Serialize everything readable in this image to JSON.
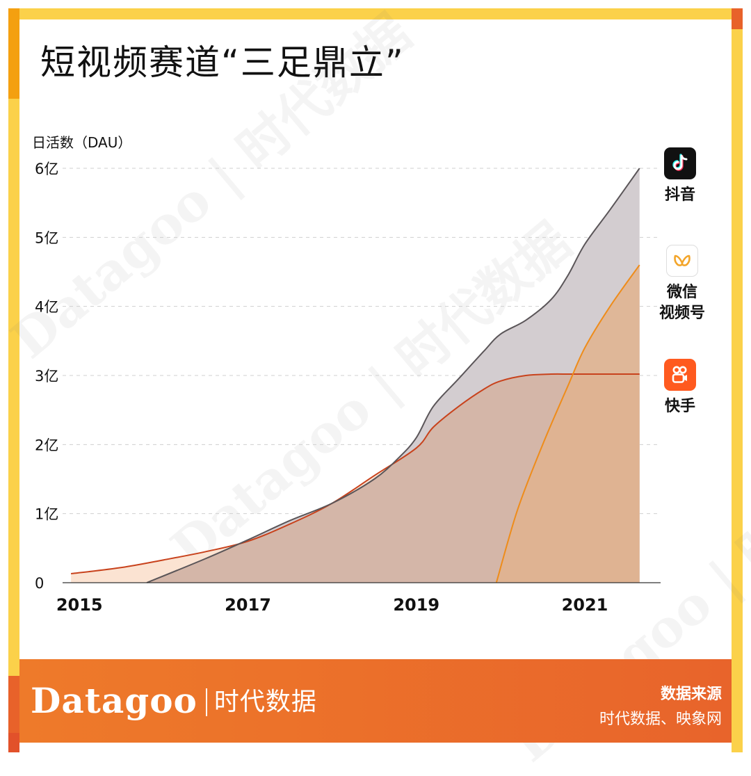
{
  "title": "短视频赛道“三足鼎立”",
  "watermark": "Datagoo | 时代数据",
  "footer": {
    "brand": "Datagoo",
    "brand_cn": "时代数据",
    "source_label": "数据来源",
    "source_value": "时代数据、映象网"
  },
  "legend": [
    {
      "name": "抖音",
      "icon": "douyin-icon"
    },
    {
      "name": "微信\n视频号",
      "icon": "wechat-channels-icon"
    },
    {
      "name": "快手",
      "icon": "kuaishou-icon"
    }
  ],
  "colors": {
    "douyin_fill": "#d3cdd0",
    "douyin_line": "#5a5558",
    "kuaishou_fill": "#d4b6a8",
    "kuaishou_line": "#c8421c",
    "channels_fill": "#e0b38e",
    "channels_line": "#ee8c1a",
    "early_fill": "#fbe3d2"
  },
  "chart_data": {
    "type": "area",
    "ylabel": "日活数（DAU）",
    "yticks": [
      "0",
      "1亿",
      "2亿",
      "3亿",
      "4亿",
      "5亿",
      "6亿"
    ],
    "ylim": [
      0,
      6
    ],
    "xticks": [
      "2015",
      "2017",
      "2019",
      "2021"
    ],
    "xtick_values": [
      2015,
      2017,
      2019,
      2021
    ],
    "xlim": [
      2014.8,
      2021.9
    ],
    "grid": true,
    "series": [
      {
        "name": "抖音",
        "x": [
          2015.8,
          2016.5,
          2017,
          2017.5,
          2018,
          2018.5,
          2018.8,
          2019,
          2019.2,
          2019.5,
          2019.8,
          2020.0,
          2020.3,
          2020.6,
          2020.8,
          2021.0,
          2021.3,
          2021.65
        ],
        "values": [
          0,
          0.35,
          0.62,
          0.9,
          1.15,
          1.5,
          1.82,
          2.1,
          2.55,
          2.95,
          3.35,
          3.6,
          3.8,
          4.1,
          4.45,
          4.9,
          5.4,
          6.0
        ]
      },
      {
        "name": "快手",
        "x": [
          2014.9,
          2015.5,
          2016,
          2016.5,
          2017,
          2017.5,
          2018,
          2018.5,
          2019,
          2019.2,
          2019.5,
          2019.8,
          2020.0,
          2020.3,
          2020.6,
          2020.8,
          2021.0,
          2021.3,
          2021.65
        ],
        "values": [
          0.13,
          0.22,
          0.33,
          0.45,
          0.6,
          0.85,
          1.15,
          1.55,
          1.95,
          2.25,
          2.55,
          2.8,
          2.92,
          3.0,
          3.02,
          3.02,
          3.02,
          3.02,
          3.02
        ]
      },
      {
        "name": "微信视频号",
        "x": [
          2019.95,
          2020.2,
          2020.5,
          2020.8,
          2021.0,
          2021.3,
          2021.65
        ],
        "values": [
          0,
          1.05,
          2.0,
          2.85,
          3.4,
          4.0,
          4.6
        ]
      }
    ]
  }
}
